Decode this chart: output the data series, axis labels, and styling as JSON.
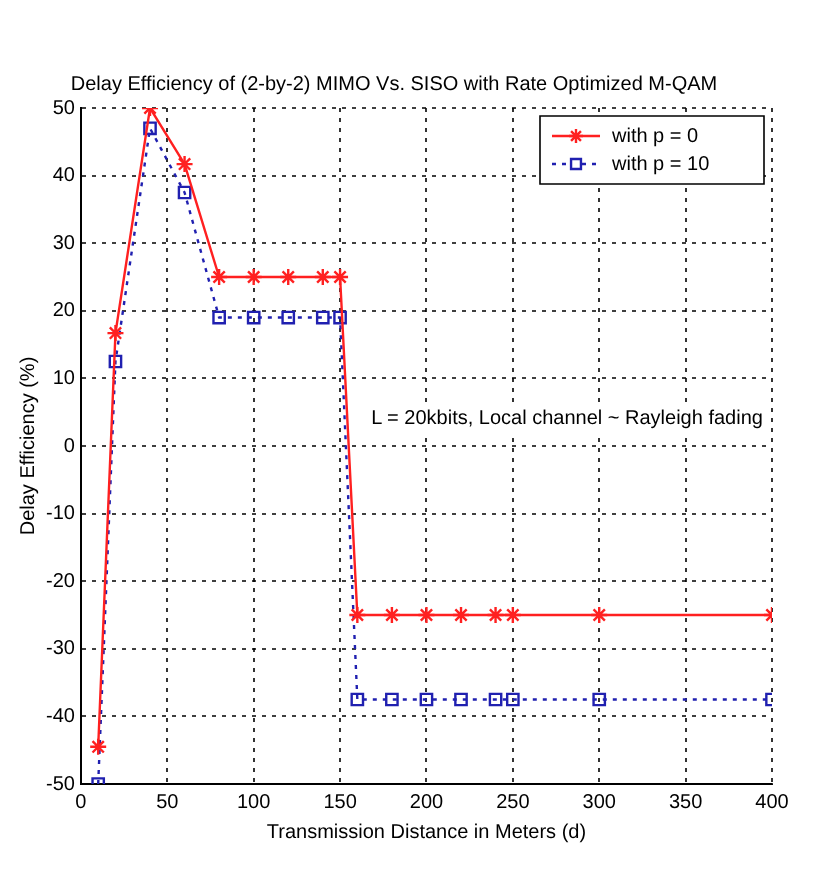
{
  "chart_data": {
    "type": "line",
    "title": "Delay Efficiency of (2-by-2) MIMO Vs. SISO with Rate Optimized M-QAM",
    "xlabel": "Transmission Distance in Meters (d)",
    "ylabel": "Delay Efficiency (%)",
    "x": [
      10,
      20,
      40,
      60,
      80,
      100,
      120,
      140,
      150,
      160,
      180,
      200,
      220,
      240,
      250,
      300,
      400
    ],
    "series": [
      {
        "name": "with p = 0",
        "color": "#ff2020",
        "marker": "cross",
        "line_style": "solid",
        "values": [
          -44.5,
          16.7,
          50,
          41.7,
          25,
          25,
          25,
          25,
          25,
          -25,
          -25,
          -25,
          -25,
          -25,
          -25,
          -25,
          -25
        ]
      },
      {
        "name": "with p = 10",
        "color": "#2020b0",
        "marker": "square",
        "line_style": "dotted",
        "values": [
          -50,
          12.5,
          47,
          37.5,
          19,
          19,
          19,
          19,
          19,
          -37.5,
          -37.5,
          -37.5,
          -37.5,
          -37.5,
          -37.5,
          -37.5,
          -37.5
        ]
      }
    ],
    "xlim": [
      0,
      400
    ],
    "xticks": [
      0,
      50,
      100,
      150,
      200,
      250,
      300,
      350,
      400
    ],
    "ylim": [
      -50,
      50
    ],
    "yticks": [
      -50,
      -40,
      -30,
      -20,
      -10,
      0,
      10,
      20,
      30,
      40,
      50
    ],
    "annotations": [
      "L = 20kbits, Local channel ~ Rayleigh fading"
    ],
    "grid": true,
    "legend": "top right"
  }
}
